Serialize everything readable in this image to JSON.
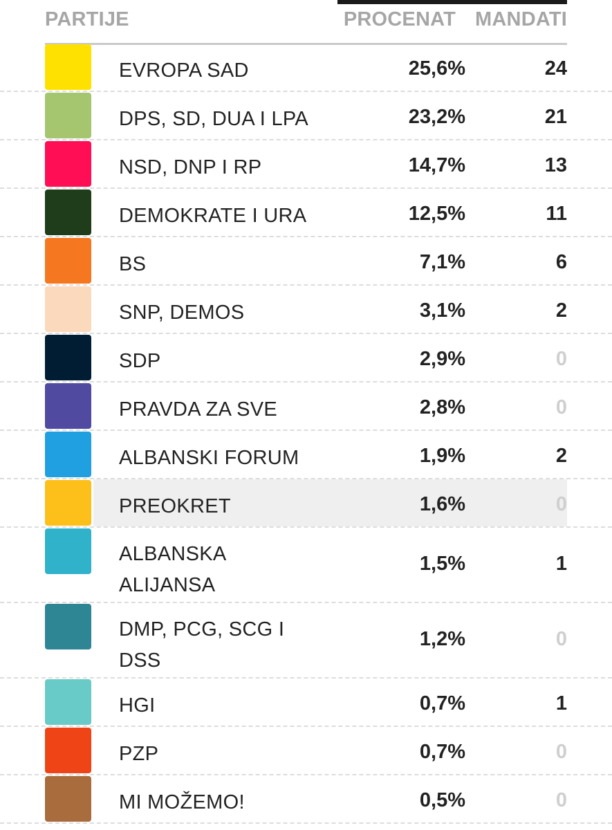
{
  "header": {
    "party_label": "PARTIJE",
    "percent_label": "PROCENAT",
    "seats_label": "MANDATI"
  },
  "rows": [
    {
      "name": "EVROPA SAD",
      "percent": "25,6%",
      "seats": "24",
      "color": "#ffe100"
    },
    {
      "name": "DPS, SD, DUA I LPA",
      "percent": "23,2%",
      "seats": "21",
      "color": "#a5c56f"
    },
    {
      "name": "NSD, DNP I RP",
      "percent": "14,7%",
      "seats": "13",
      "color": "#ff0d55"
    },
    {
      "name": "DEMOKRATE I URA",
      "percent": "12,5%",
      "seats": "11",
      "color": "#1f3d1b"
    },
    {
      "name": "BS",
      "percent": "7,1%",
      "seats": "6",
      "color": "#f57720"
    },
    {
      "name": "SNP, DEMOS",
      "percent": "3,1%",
      "seats": "2",
      "color": "#fbd9bd"
    },
    {
      "name": "SDP",
      "percent": "2,9%",
      "seats": "0",
      "color": "#001d33"
    },
    {
      "name": "PRAVDA ZA SVE",
      "percent": "2,8%",
      "seats": "0",
      "color": "#514aa1"
    },
    {
      "name": "ALBANSKI FORUM",
      "percent": "1,9%",
      "seats": "2",
      "color": "#20a0e1"
    },
    {
      "name": "PREOKRET",
      "percent": "1,6%",
      "seats": "0",
      "color": "#fdbf1a",
      "highlight": true
    },
    {
      "name": "ALBANSKA ALIJANSA",
      "name_lines": [
        "ALBANSKA",
        "ALIJANSA"
      ],
      "percent": "1,5%",
      "seats": "1",
      "color": "#30b2cb"
    },
    {
      "name": "DMP, PCG, SCG I DSS",
      "name_lines": [
        "DMP, PCG, SCG I",
        "DSS"
      ],
      "percent": "1,2%",
      "seats": "0",
      "color": "#2e8594"
    },
    {
      "name": "HGI",
      "percent": "0,7%",
      "seats": "1",
      "color": "#68cbc7"
    },
    {
      "name": "PZP",
      "percent": "0,7%",
      "seats": "0",
      "color": "#ef4516"
    },
    {
      "name": "MI MOŽEMO!",
      "percent": "0,5%",
      "seats": "0",
      "color": "#a86c3d"
    }
  ]
}
